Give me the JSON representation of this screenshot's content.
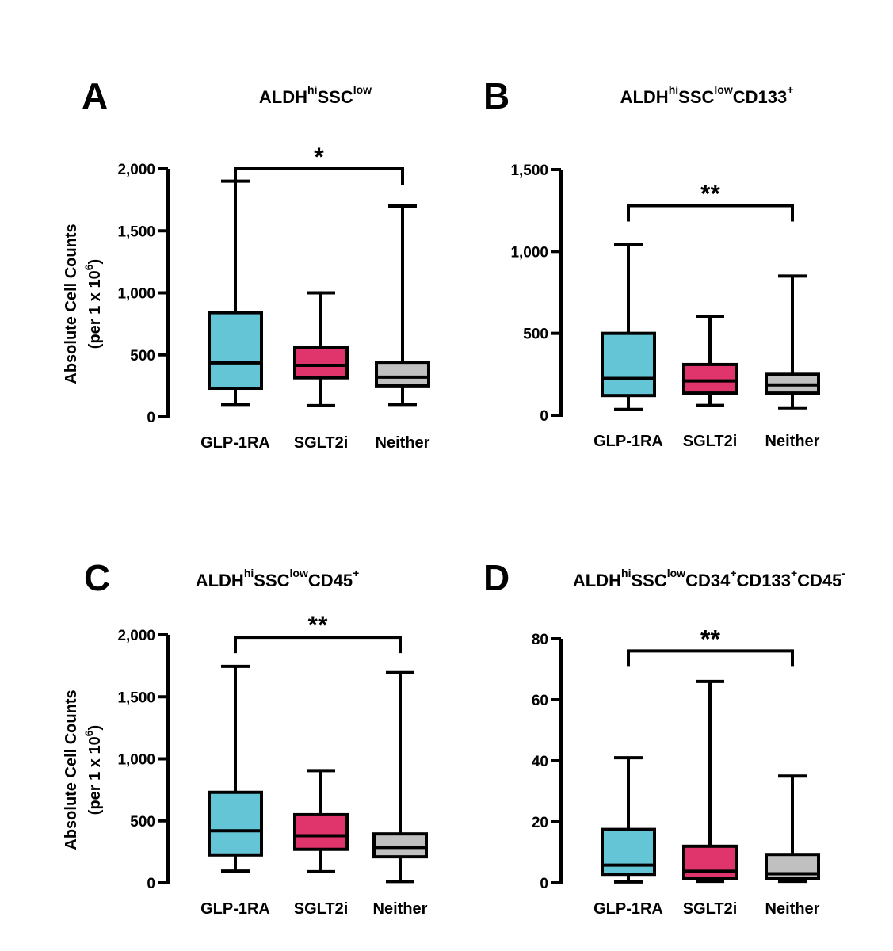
{
  "chart_data": [
    {
      "type": "box",
      "panel": "A",
      "title": "ALDH<sup>hi</sup>SSC<sup>low</sup>",
      "ylabel": [
        "Absolute Cell Counts",
        "(per 1 x 10<sup>6</sup>)"
      ],
      "categories": [
        "GLP-1RA",
        "SGLT2i",
        "Neither"
      ],
      "ylim": [
        0,
        2000
      ],
      "yticks": [
        0,
        500,
        1000,
        1500,
        2000
      ],
      "ytick_labels": [
        "0",
        "500",
        "1,000",
        "1,500",
        "2,000"
      ],
      "boxes": [
        {
          "min": 100,
          "q1": 230,
          "median": 435,
          "q3": 840,
          "max": 1900
        },
        {
          "min": 90,
          "q1": 315,
          "median": 415,
          "q3": 560,
          "max": 1000
        },
        {
          "min": 100,
          "q1": 250,
          "median": 320,
          "q3": 440,
          "max": 1700
        }
      ],
      "significance": {
        "from": 0,
        "to": 2,
        "label": "*",
        "y": 2000
      }
    },
    {
      "type": "box",
      "panel": "B",
      "title": "ALDH<sup>hi</sup>SSC<sup>low</sup>CD133<sup>+</sup>",
      "ylabel": [],
      "categories": [
        "GLP-1RA",
        "SGLT2i",
        "Neither"
      ],
      "ylim": [
        0,
        1500
      ],
      "yticks": [
        0,
        500,
        1000,
        1500
      ],
      "ytick_labels": [
        "0",
        "500",
        "1,000",
        "1,500"
      ],
      "boxes": [
        {
          "min": 35,
          "q1": 120,
          "median": 225,
          "q3": 500,
          "max": 1045
        },
        {
          "min": 60,
          "q1": 135,
          "median": 210,
          "q3": 310,
          "max": 605
        },
        {
          "min": 45,
          "q1": 135,
          "median": 185,
          "q3": 250,
          "max": 850
        }
      ],
      "significance": {
        "from": 0,
        "to": 2,
        "label": "**",
        "y": 1280
      }
    },
    {
      "type": "box",
      "panel": "C",
      "title": "ALDH<sup>hi</sup>SSC<sup>low</sup>CD45<sup>+</sup>",
      "ylabel": [
        "Absolute Cell Counts",
        "(per 1 x 10<sup>6</sup>)"
      ],
      "categories": [
        "GLP-1RA",
        "SGLT2i",
        "Neither"
      ],
      "ylim": [
        0,
        2000
      ],
      "yticks": [
        0,
        500,
        1000,
        1500,
        2000
      ],
      "ytick_labels": [
        "0",
        "500",
        "1,000",
        "1,500",
        "2,000"
      ],
      "boxes": [
        {
          "min": 95,
          "q1": 225,
          "median": 420,
          "q3": 730,
          "max": 1745
        },
        {
          "min": 90,
          "q1": 270,
          "median": 380,
          "q3": 550,
          "max": 905
        },
        {
          "min": 10,
          "q1": 210,
          "median": 285,
          "q3": 395,
          "max": 1695
        }
      ],
      "significance": {
        "from": 0,
        "to": 2,
        "label": "**",
        "y": 1980
      }
    },
    {
      "type": "box",
      "panel": "D",
      "title": "ALDH<sup>hi</sup>SSC<sup>low</sup>CD34<sup>+</sup>CD133<sup>+</sup>CD45<sup>-</sup>",
      "ylabel": [],
      "categories": [
        "GLP-1RA",
        "SGLT2i",
        "Neither"
      ],
      "ylim": [
        0,
        80
      ],
      "yticks": [
        0,
        20,
        40,
        60,
        80
      ],
      "ytick_labels": [
        "0",
        "20",
        "40",
        "60",
        "80"
      ],
      "boxes": [
        {
          "min": 0.3,
          "q1": 2.8,
          "median": 5.8,
          "q3": 17.5,
          "max": 41
        },
        {
          "min": 0.5,
          "q1": 1.5,
          "median": 3.8,
          "q3": 12,
          "max": 66
        },
        {
          "min": 0.5,
          "q1": 1.5,
          "median": 3,
          "q3": 9.3,
          "max": 35
        }
      ],
      "significance": {
        "from": 0,
        "to": 2,
        "label": "**",
        "y": 76
      }
    }
  ],
  "colors": {
    "glp1ra": "#64c5d6",
    "sglt2i": "#e0346c",
    "neither": "#c0c0c0",
    "ink": "#000000"
  }
}
